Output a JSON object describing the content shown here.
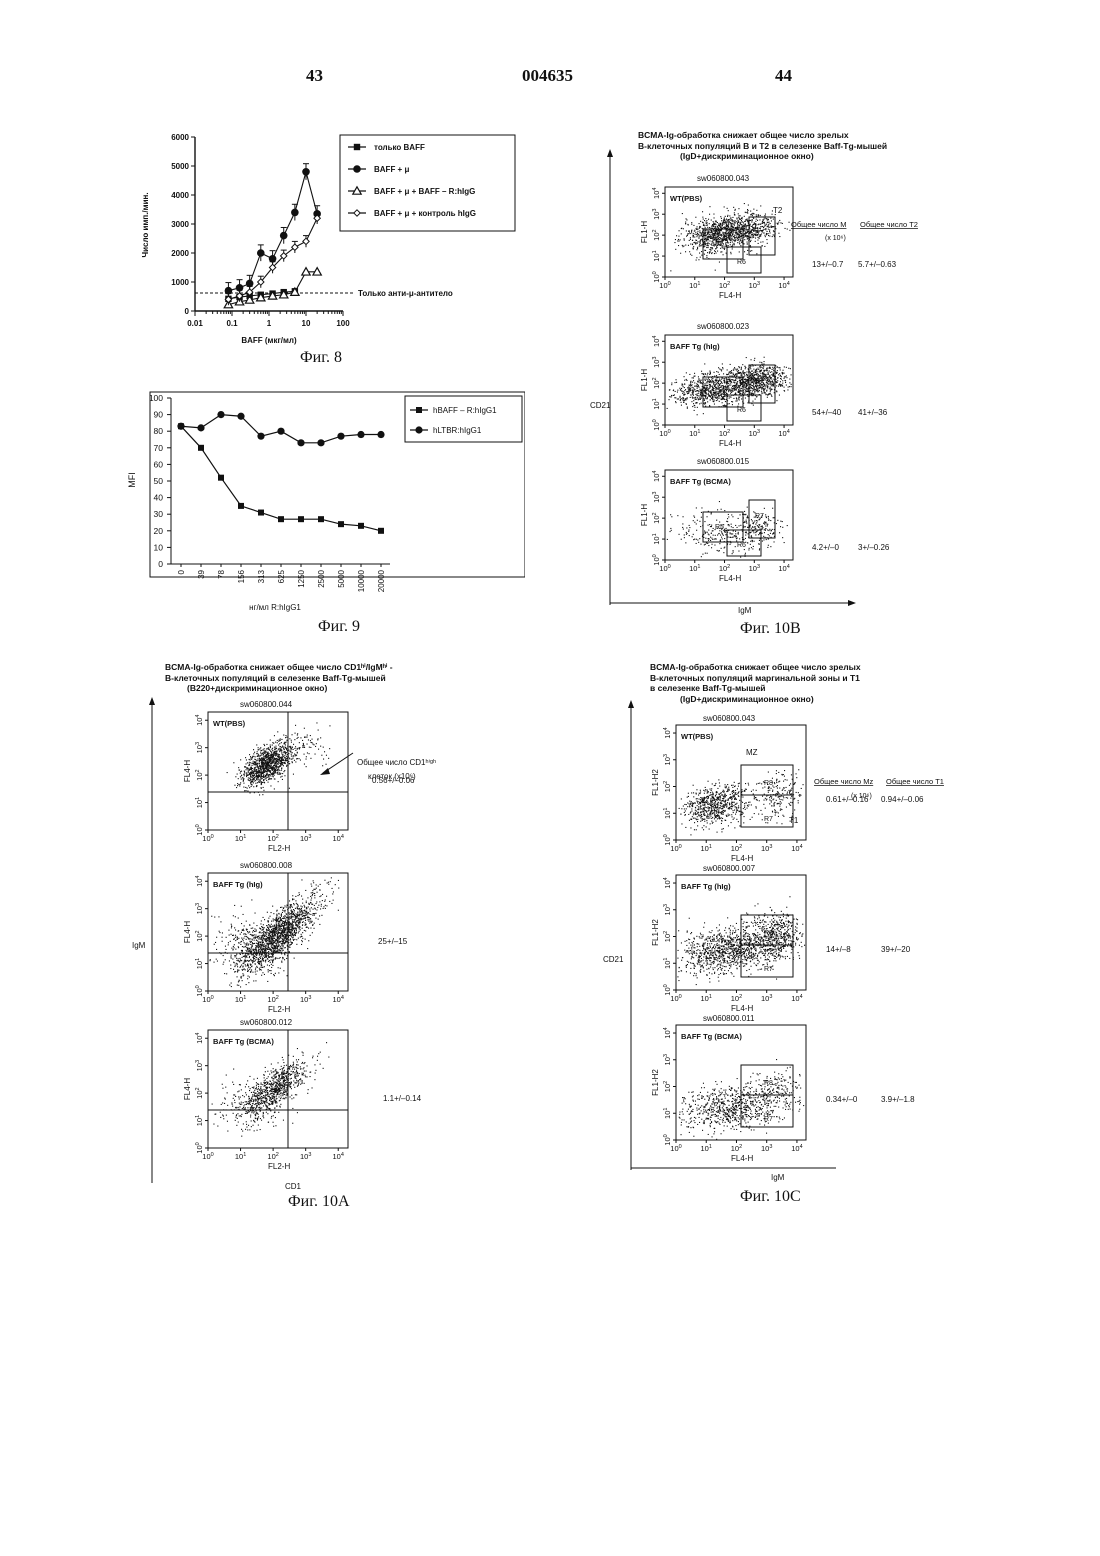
{
  "page": {
    "left_number": "43",
    "center_number": "004635",
    "right_number": "44"
  },
  "fig8": {
    "caption": "Фиг. 8",
    "xlabel": "BAFF (мкг/мл)",
    "ylabel": "Число имп./мин.",
    "hline_label": "Только анти-μ-антитело",
    "legend": [
      "только BAFF",
      "BAFF + μ",
      "BAFF + μ + BAFF – R:hIgG",
      "BAFF + μ + контроль hIgG"
    ],
    "yticks": [
      "0",
      "1000",
      "2000",
      "3000",
      "4000",
      "5000",
      "6000"
    ],
    "xticks": [
      "0.01",
      "0.1",
      "1",
      "10",
      "100"
    ]
  },
  "fig9": {
    "caption": "Фиг. 9",
    "xlabel": "нг/мл R:hIgG1",
    "ylabel": "MFI",
    "legend": [
      "hBAFF – R:hIgG1",
      "hLTBR:hIgG1"
    ],
    "categories": [
      "0",
      "39",
      "78",
      "156",
      "313",
      "625",
      "1250",
      "2500",
      "5000",
      "10000",
      "20000"
    ],
    "yticks": [
      "0",
      "10",
      "20",
      "30",
      "40",
      "50",
      "60",
      "70",
      "80",
      "90",
      "100"
    ]
  },
  "fig10b": {
    "caption": "Фиг. 10B",
    "title": [
      "BCMA-Ig-обработка снижает общее число зрелых",
      "В-клеточных популяций В и Т2 в селезенке Baff-Tg-мышей",
      "(IgD+дискриминационное окно)"
    ],
    "col1": "Общее число М",
    "col2": "Общее число Т2",
    "unit": "(x 10⁶)",
    "axis_y": "CD21",
    "axis_x": "IgM",
    "plot_xlabel": "FL4-H",
    "plot_ylabel": "FL1-H",
    "panels": [
      {
        "id": "sw060800.043",
        "label": "WT(PBS)",
        "v1": "13+/–0.7",
        "v2": "5.7+/–0.63"
      },
      {
        "id": "sw060800.023",
        "label": "BAFF Tg (hIg)",
        "v1": "54+/–40",
        "v2": "41+/–36"
      },
      {
        "id": "sw060800.015",
        "label": "BAFF Tg (BCMA)",
        "v1": "4.2+/–0",
        "v2": "3+/–0.26"
      }
    ],
    "gate_labels": {
      "m": "M",
      "t2": "T2",
      "r5": "R5",
      "r6": "R6",
      "r7": "R7"
    }
  },
  "fig10a": {
    "caption": "Фиг. 10A",
    "title": [
      "BCMA-Ig-обработка снижает общее число CD1ʰⁱ/IgMʰⁱ -",
      "В-клеточных популяций в селезенке Baff-Tg-мышей",
      "(B220+дискриминационное окно)"
    ],
    "annotation": [
      "Общее число CD1ʰⁱᵍʰ",
      "клеток (x10⁶)"
    ],
    "axis_y": "IgM",
    "axis_x": "CD1",
    "plot_xlabel": "FL2-H",
    "plot_ylabel": "FL4-H",
    "panels": [
      {
        "id": "sw060800.044",
        "label": "WT(PBS)",
        "v1": "0.56+/–0.06"
      },
      {
        "id": "sw060800.008",
        "label": "BAFF Tg (hIg)",
        "v1": "25+/–15"
      },
      {
        "id": "sw060800.012",
        "label": "BAFF Tg (BCMA)",
        "v1": "1.1+/–0.14"
      }
    ]
  },
  "fig10c": {
    "caption": "Фиг. 10C",
    "title": [
      "BCMA-Ig-обработка снижает общее число зрелых",
      "В-клеточных популяций маргинальной зоны и Т1",
      "в селезенке Baff-Tg-мышей",
      "(IgD+дискриминационное окно)"
    ],
    "col1": "Общее число Mz",
    "col2": "Общее число Т1",
    "unit": "(x 10⁶)",
    "axis_y": "CD21",
    "axis_x": "IgM",
    "plot_xlabel": "FL4-H",
    "plot_ylabel": "FL1-H2",
    "panels": [
      {
        "id": "sw060800.043",
        "label": "WT(PBS)",
        "v1": "0.61+/–0.16",
        "v2": "0.94+/–0.06"
      },
      {
        "id": "sw060800.007",
        "label": "BAFF Tg (hIg)",
        "v1": "14+/–8",
        "v2": "39+/–20"
      },
      {
        "id": "sw060800.011",
        "label": "BAFF Tg (BCMA)",
        "v1": "0.34+/–0",
        "v2": "3.9+/–1.8"
      }
    ],
    "gate_labels": {
      "mz": "MZ",
      "t1": "T1",
      "r7": "R7",
      "r8": "R8"
    }
  },
  "chart_data": [
    {
      "type": "line",
      "xscale": "log",
      "xlim": [
        0.01,
        100
      ],
      "ylim": [
        0,
        6000
      ],
      "xlabel": "BAFF (мкг/мл)",
      "ylabel": "Число имп./мин.",
      "legend_position": "right",
      "hline": {
        "y": 620,
        "label": "Только анти-μ-антитело"
      },
      "series": [
        {
          "name": "только BAFF",
          "marker": "square-filled",
          "x": [
            0.08,
            0.16,
            0.3,
            0.6,
            1.25,
            2.5,
            5
          ],
          "y": [
            420,
            480,
            520,
            560,
            600,
            650,
            680
          ]
        },
        {
          "name": "BAFF + μ",
          "marker": "circle-filled",
          "x": [
            0.08,
            0.16,
            0.3,
            0.6,
            1.25,
            2.5,
            5,
            10,
            20
          ],
          "y": [
            700,
            800,
            950,
            2000,
            1800,
            2600,
            3400,
            4800,
            3350
          ]
        },
        {
          "name": "BAFF + μ + BAFF – R:hIgG",
          "marker": "triangle-open",
          "x": [
            0.08,
            0.16,
            0.3,
            0.6,
            1.25,
            2.5,
            5,
            10,
            20
          ],
          "y": [
            220,
            320,
            380,
            460,
            520,
            560,
            650,
            1350,
            1350
          ]
        },
        {
          "name": "BAFF + μ + контроль hIgG",
          "marker": "diamond-open",
          "x": [
            0.08,
            0.16,
            0.3,
            0.6,
            1.25,
            2.5,
            5,
            10,
            20
          ],
          "y": [
            400,
            520,
            650,
            1000,
            1500,
            1900,
            2200,
            2400,
            3200
          ]
        }
      ]
    },
    {
      "type": "line",
      "categories": [
        "0",
        "39",
        "78",
        "156",
        "313",
        "625",
        "1250",
        "2500",
        "5000",
        "10000",
        "20000"
      ],
      "ylim": [
        0,
        100
      ],
      "xlabel": "нг/мл R:hIgG1",
      "ylabel": "MFI",
      "legend_position": "top-right",
      "series": [
        {
          "name": "hBAFF – R:hIgG1",
          "marker": "square-filled",
          "values": [
            83,
            70,
            52,
            35,
            31,
            27,
            27,
            27,
            24,
            23,
            20
          ]
        },
        {
          "name": "hLTBR:hIgG1",
          "marker": "circle-filled",
          "values": [
            83,
            82,
            90,
            89,
            77,
            80,
            73,
            73,
            77,
            78,
            78
          ]
        }
      ]
    }
  ]
}
